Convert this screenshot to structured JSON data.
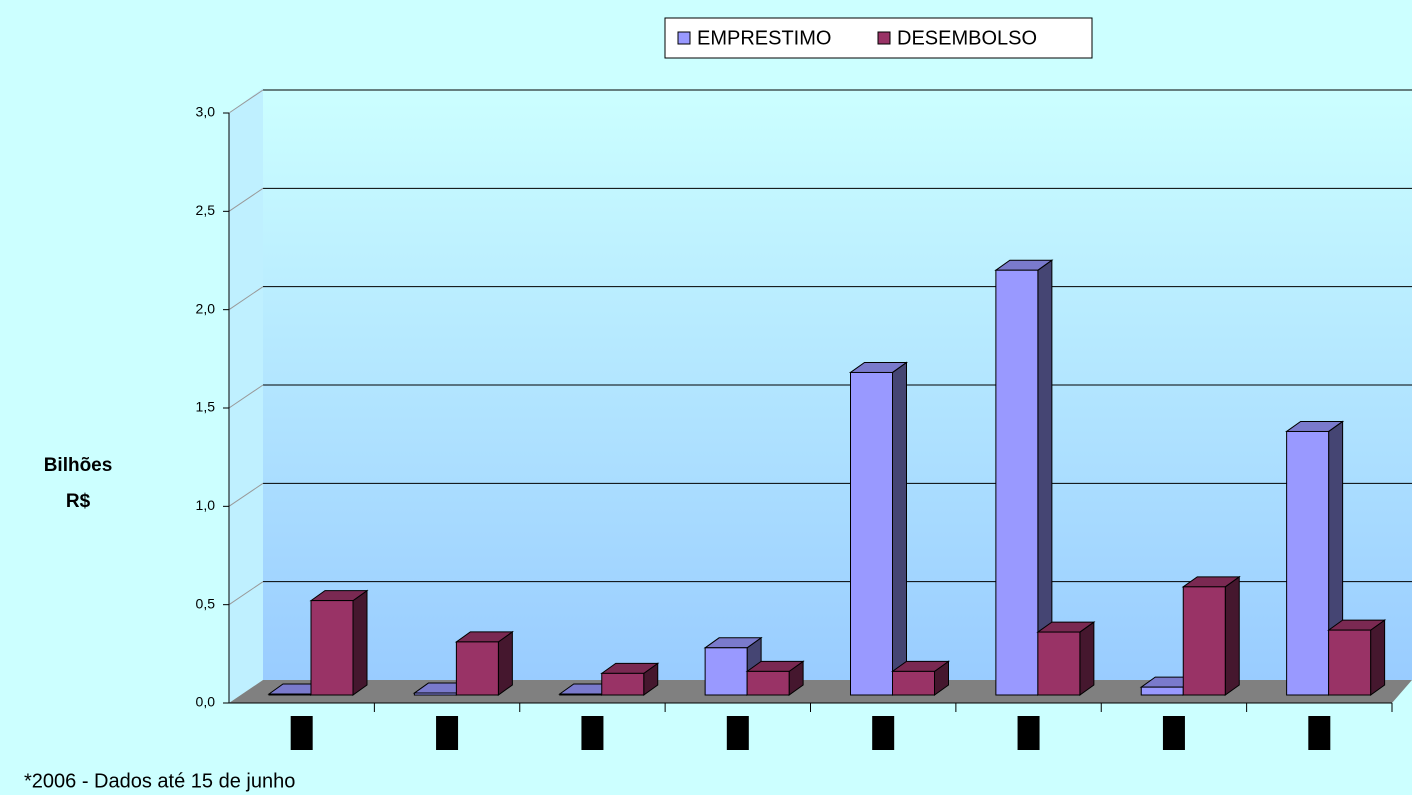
{
  "chart_data": {
    "type": "bar3d",
    "y_label": [
      "Bilhões",
      "R$"
    ],
    "footnote": "*2006 - Dados até 15 de junho",
    "categories": [
      null,
      null,
      null,
      null,
      null,
      null,
      null,
      null
    ],
    "series": [
      {
        "name": "EMPRESTIMO",
        "color": "#9999ff",
        "values": [
          0.005,
          0.01,
          0.005,
          0.24,
          1.64,
          2.16,
          0.04,
          1.34
        ]
      },
      {
        "name": "DESEMBOLSO",
        "color": "#993366",
        "values": [
          0.48,
          0.27,
          0.11,
          0.12,
          0.12,
          0.32,
          0.55,
          0.33
        ]
      }
    ],
    "ylim": [
      0,
      3
    ],
    "yticks": [
      {
        "value": 0,
        "label": "0,0"
      },
      {
        "value": 0.5,
        "label": "0,5"
      },
      {
        "value": 1,
        "label": "1,0"
      },
      {
        "value": 1.5,
        "label": "1,5"
      },
      {
        "value": 2,
        "label": "2,0"
      },
      {
        "value": 2.5,
        "label": "2,5"
      },
      {
        "value": 3,
        "label": "3,0"
      }
    ],
    "grid": true,
    "legend": "top"
  }
}
